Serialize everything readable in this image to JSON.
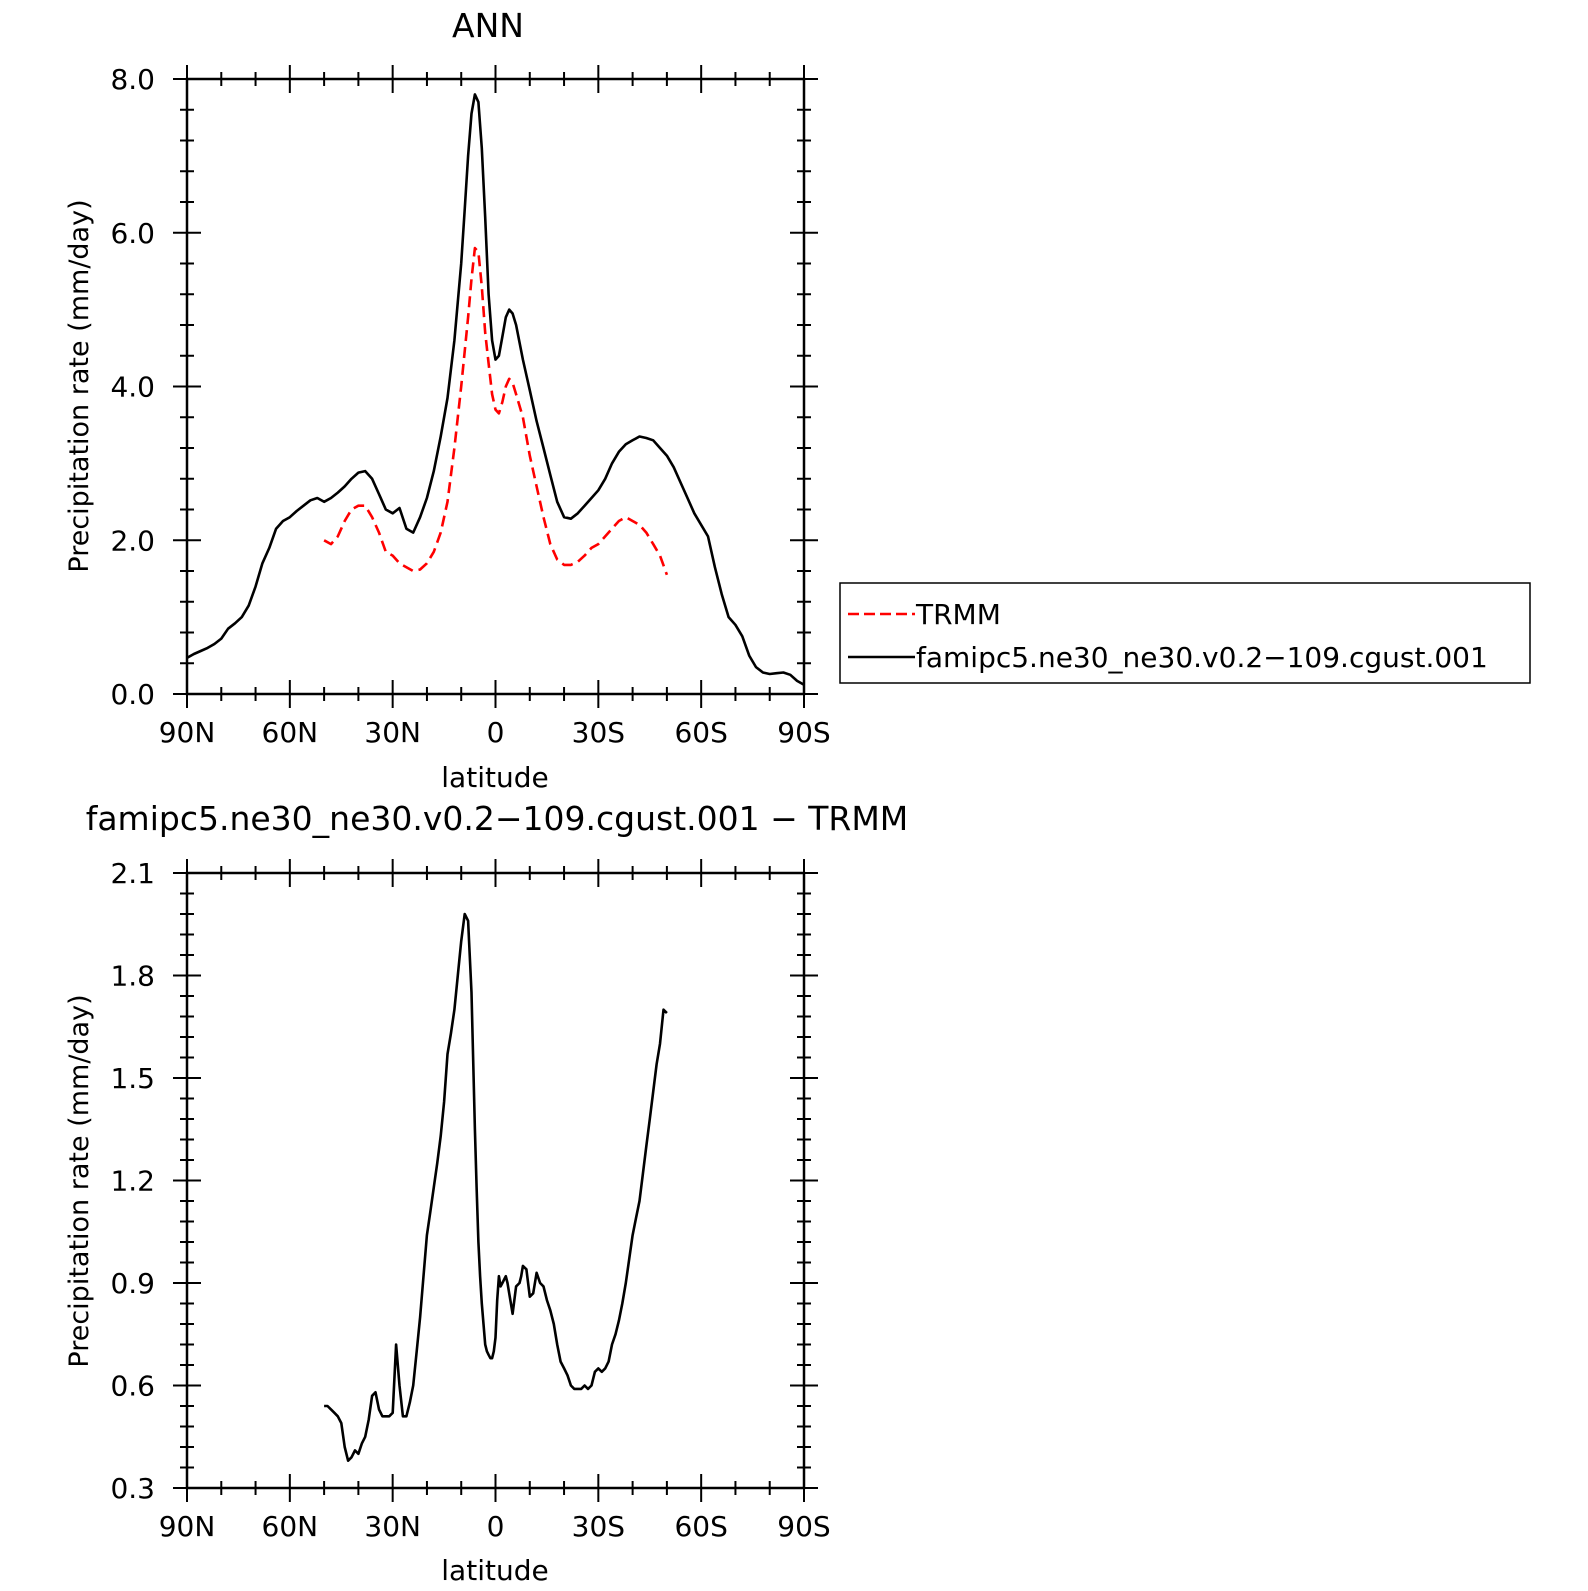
{
  "chart_data": [
    {
      "type": "line",
      "title": "ANN",
      "xlabel": "latitude",
      "ylabel": "Precipitation rate (mm/day)",
      "xlim": [
        90,
        -90
      ],
      "ylim": [
        0,
        8
      ],
      "x_ticks": [
        {
          "value": 90,
          "label": "90N"
        },
        {
          "value": 60,
          "label": "60N"
        },
        {
          "value": 30,
          "label": "30N"
        },
        {
          "value": 0,
          "label": "0"
        },
        {
          "value": -30,
          "label": "30S"
        },
        {
          "value": -60,
          "label": "60S"
        },
        {
          "value": -90,
          "label": "90S"
        }
      ],
      "y_ticks": [
        {
          "value": 0,
          "label": "0.0"
        },
        {
          "value": 2,
          "label": "2.0"
        },
        {
          "value": 4,
          "label": "4.0"
        },
        {
          "value": 6,
          "label": "6.0"
        },
        {
          "value": 8,
          "label": "8.0"
        }
      ],
      "legend": {
        "placement": "right",
        "entries": [
          "TRMM",
          "famipc5.ne30_ne30.v0.2−109.cgust.001"
        ]
      },
      "series": [
        {
          "name": "TRMM",
          "color": "#ff0000",
          "style": "dashed",
          "x": [
            50,
            48,
            46,
            44,
            42,
            40,
            38,
            36,
            34,
            32,
            30,
            28,
            26,
            24,
            22,
            20,
            18,
            16,
            14,
            12,
            10,
            8,
            7,
            6,
            5,
            4,
            3,
            2,
            1,
            0,
            -1,
            -2,
            -3,
            -4,
            -5,
            -6,
            -8,
            -10,
            -12,
            -14,
            -16,
            -18,
            -20,
            -22,
            -24,
            -26,
            -28,
            -30,
            -32,
            -34,
            -36,
            -38,
            -40,
            -42,
            -44,
            -46,
            -48,
            -50
          ],
          "values": [
            2.0,
            1.95,
            2.05,
            2.25,
            2.4,
            2.45,
            2.45,
            2.3,
            2.1,
            1.85,
            1.8,
            1.7,
            1.65,
            1.6,
            1.62,
            1.7,
            1.85,
            2.1,
            2.5,
            3.2,
            4.0,
            4.9,
            5.4,
            5.8,
            5.75,
            5.3,
            4.7,
            4.3,
            3.9,
            3.7,
            3.65,
            3.8,
            4.0,
            4.1,
            4.05,
            3.9,
            3.6,
            3.1,
            2.7,
            2.3,
            1.95,
            1.75,
            1.68,
            1.68,
            1.72,
            1.8,
            1.9,
            1.95,
            2.05,
            2.15,
            2.25,
            2.3,
            2.25,
            2.2,
            2.1,
            1.95,
            1.8,
            1.55
          ]
        },
        {
          "name": "famipc5.ne30_ne30.v0.2−109.cgust.001",
          "color": "#000000",
          "style": "solid",
          "x": [
            90,
            88,
            86,
            84,
            82,
            80,
            78,
            76,
            74,
            72,
            70,
            68,
            66,
            64,
            62,
            60,
            58,
            56,
            54,
            52,
            50,
            48,
            46,
            44,
            42,
            40,
            38,
            36,
            34,
            32,
            30,
            28,
            26,
            24,
            22,
            20,
            18,
            16,
            14,
            12,
            10,
            9,
            8,
            7,
            6,
            5,
            4,
            3,
            2,
            1,
            0,
            -1,
            -2,
            -3,
            -4,
            -5,
            -6,
            -8,
            -10,
            -12,
            -14,
            -16,
            -18,
            -20,
            -22,
            -24,
            -26,
            -28,
            -30,
            -32,
            -34,
            -36,
            -38,
            -40,
            -42,
            -44,
            -46,
            -48,
            -50,
            -52,
            -54,
            -56,
            -58,
            -60,
            -62,
            -64,
            -66,
            -68,
            -70,
            -72,
            -74,
            -76,
            -78,
            -80,
            -82,
            -84,
            -86,
            -88,
            -90
          ],
          "values": [
            0.47,
            0.52,
            0.56,
            0.6,
            0.65,
            0.72,
            0.85,
            0.92,
            1.0,
            1.15,
            1.4,
            1.7,
            1.9,
            2.15,
            2.25,
            2.3,
            2.38,
            2.45,
            2.52,
            2.55,
            2.5,
            2.55,
            2.62,
            2.7,
            2.8,
            2.88,
            2.9,
            2.8,
            2.6,
            2.4,
            2.35,
            2.42,
            2.15,
            2.1,
            2.3,
            2.55,
            2.9,
            3.35,
            3.85,
            4.6,
            5.6,
            6.3,
            7.0,
            7.55,
            7.8,
            7.7,
            7.1,
            6.2,
            5.2,
            4.6,
            4.35,
            4.4,
            4.65,
            4.9,
            5.0,
            4.95,
            4.8,
            4.35,
            3.95,
            3.55,
            3.2,
            2.85,
            2.5,
            2.3,
            2.28,
            2.35,
            2.45,
            2.55,
            2.65,
            2.8,
            3.0,
            3.15,
            3.25,
            3.3,
            3.35,
            3.33,
            3.3,
            3.2,
            3.1,
            2.95,
            2.75,
            2.55,
            2.35,
            2.2,
            2.05,
            1.65,
            1.3,
            1.0,
            0.9,
            0.75,
            0.5,
            0.35,
            0.28,
            0.26,
            0.27,
            0.28,
            0.25,
            0.17,
            0.12
          ]
        }
      ]
    },
    {
      "type": "line",
      "title": "famipc5.ne30_ne30.v0.2−109.cgust.001  −  TRMM",
      "xlabel": "latitude",
      "ylabel": "Precipitation rate (mm/day)",
      "xlim": [
        90,
        -90
      ],
      "ylim": [
        0.3,
        2.1
      ],
      "x_ticks": [
        {
          "value": 90,
          "label": "90N"
        },
        {
          "value": 60,
          "label": "60N"
        },
        {
          "value": 30,
          "label": "30N"
        },
        {
          "value": 0,
          "label": "0"
        },
        {
          "value": -30,
          "label": "30S"
        },
        {
          "value": -60,
          "label": "60S"
        },
        {
          "value": -90,
          "label": "90S"
        }
      ],
      "y_ticks": [
        {
          "value": 0.3,
          "label": "0.3"
        },
        {
          "value": 0.6,
          "label": "0.6"
        },
        {
          "value": 0.9,
          "label": "0.9"
        },
        {
          "value": 1.2,
          "label": "1.2"
        },
        {
          "value": 1.5,
          "label": "1.5"
        },
        {
          "value": 1.8,
          "label": "1.8"
        },
        {
          "value": 2.1,
          "label": "2.1"
        }
      ],
      "series": [
        {
          "name": "famipc5.ne30_ne30.v0.2−109.cgust.001 − TRMM",
          "color": "#000000",
          "style": "solid",
          "x": [
            50,
            49,
            48,
            47,
            46,
            45,
            44,
            43,
            42,
            41,
            40,
            39,
            38,
            37,
            36,
            35,
            34,
            33,
            32,
            31,
            30,
            29,
            28,
            27,
            26,
            25,
            24,
            23,
            22,
            21,
            20,
            19,
            18,
            17,
            16,
            15,
            14,
            13,
            12,
            11,
            10,
            9,
            8,
            7,
            6.5,
            6,
            5.5,
            5,
            4.5,
            4,
            3.5,
            3,
            2.5,
            2,
            1.5,
            1,
            0.5,
            0,
            -0.5,
            -1,
            -1.5,
            -2,
            -3,
            -3.5,
            -4,
            -4.5,
            -5,
            -6,
            -7,
            -7.5,
            -8,
            -9,
            -10,
            -11,
            -12,
            -13,
            -14,
            -15,
            -16,
            -17,
            -18,
            -19,
            -20,
            -21,
            -22,
            -23,
            -24,
            -25,
            -26,
            -27,
            -28,
            -29,
            -30,
            -31,
            -32,
            -33,
            -34,
            -35,
            -36,
            -37,
            -38,
            -39,
            -40,
            -41,
            -42,
            -43,
            -44,
            -45,
            -46,
            -47,
            -48,
            -49,
            -50
          ],
          "values": [
            0.54,
            0.54,
            0.53,
            0.52,
            0.51,
            0.49,
            0.42,
            0.38,
            0.39,
            0.41,
            0.4,
            0.43,
            0.45,
            0.5,
            0.57,
            0.58,
            0.53,
            0.51,
            0.51,
            0.51,
            0.52,
            0.72,
            0.6,
            0.51,
            0.51,
            0.55,
            0.6,
            0.7,
            0.8,
            0.92,
            1.04,
            1.11,
            1.18,
            1.25,
            1.33,
            1.43,
            1.57,
            1.63,
            1.7,
            1.8,
            1.9,
            1.98,
            1.96,
            1.75,
            1.55,
            1.35,
            1.18,
            1.02,
            0.92,
            0.84,
            0.78,
            0.72,
            0.7,
            0.69,
            0.68,
            0.68,
            0.7,
            0.74,
            0.85,
            0.92,
            0.89,
            0.9,
            0.92,
            0.9,
            0.87,
            0.84,
            0.81,
            0.89,
            0.9,
            0.92,
            0.95,
            0.94,
            0.86,
            0.87,
            0.93,
            0.9,
            0.89,
            0.85,
            0.82,
            0.78,
            0.72,
            0.67,
            0.65,
            0.63,
            0.6,
            0.59,
            0.59,
            0.59,
            0.6,
            0.59,
            0.6,
            0.64,
            0.65,
            0.64,
            0.65,
            0.67,
            0.72,
            0.75,
            0.79,
            0.84,
            0.9,
            0.97,
            1.04,
            1.09,
            1.14,
            1.22,
            1.3,
            1.38,
            1.46,
            1.54,
            1.6,
            1.7,
            1.69
          ]
        }
      ]
    }
  ]
}
